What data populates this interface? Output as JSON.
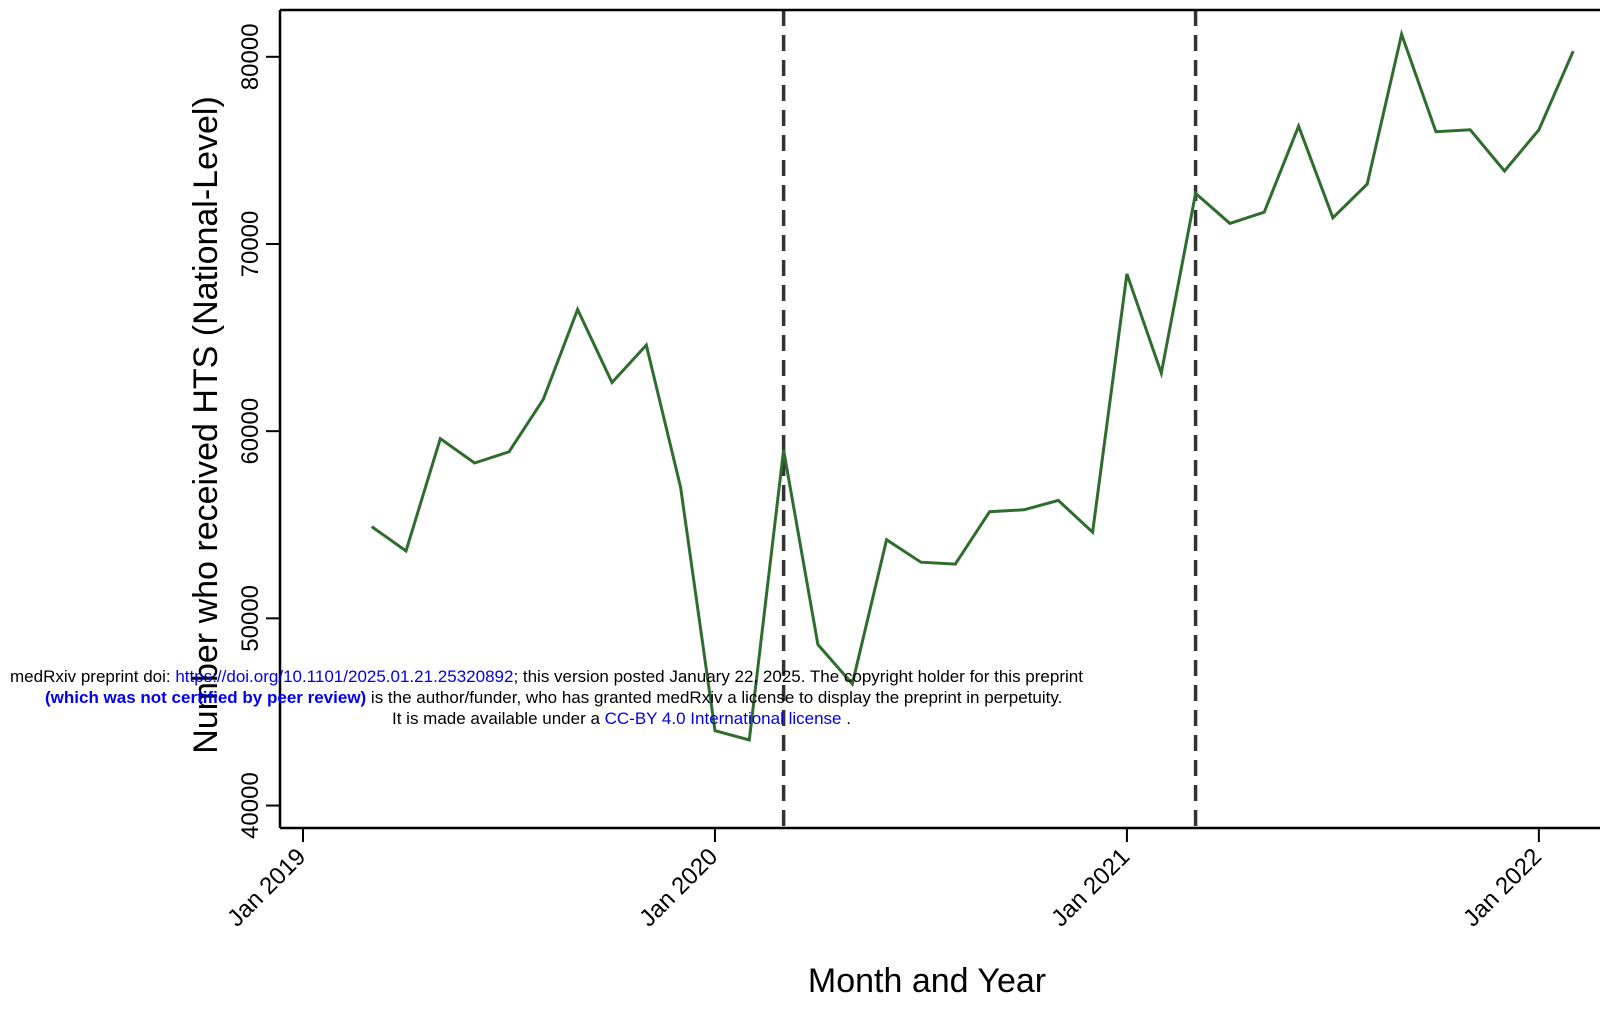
{
  "chart_data": {
    "type": "line",
    "xlabel": "Month and Year",
    "ylabel": "Number who received HTS (National-Level)",
    "xlim": [
      "2019-01",
      "2022-02"
    ],
    "ylim": [
      38800,
      82500
    ],
    "yticks": [
      40000,
      50000,
      60000,
      70000,
      80000
    ],
    "xticks": [
      "Jan 2019",
      "Jan 2020",
      "Jan 2021",
      "Jan 2022"
    ],
    "line_color": "#2f6d2f",
    "vertical_lines": [
      "2020-03",
      "2021-03"
    ],
    "series": [
      {
        "x": [
          "2019-03",
          "2019-04",
          "2019-05",
          "2019-06",
          "2019-07",
          "2019-08",
          "2019-09",
          "2019-10",
          "2019-11",
          "2019-12",
          "2020-01",
          "2020-02",
          "2020-03",
          "2020-04",
          "2020-05",
          "2020-06",
          "2020-07",
          "2020-08",
          "2020-09",
          "2020-10",
          "2020-11",
          "2020-12",
          "2021-01",
          "2021-02",
          "2021-03",
          "2021-04",
          "2021-05",
          "2021-06",
          "2021-07",
          "2021-08",
          "2021-09",
          "2021-10",
          "2021-11",
          "2021-12",
          "2022-01",
          "2022-02"
        ],
        "values": [
          54900,
          53600,
          59600,
          58300,
          58900,
          61700,
          66500,
          62600,
          64600,
          57000,
          44000,
          43500,
          59000,
          48600,
          46500,
          54200,
          53000,
          52900,
          55700,
          55800,
          56300,
          54600,
          68400,
          63100,
          72700,
          71100,
          71700,
          76300,
          71400,
          73200,
          81200,
          76000,
          76100,
          73900,
          76100,
          80300
        ]
      }
    ]
  },
  "banner": {
    "line1_prefix": "medRxiv preprint doi: ",
    "line1_link": "https://doi.org/10.1101/2025.01.21.25320892",
    "line1_suffix": "; this version posted January 22, 2025. The copyright holder for this preprint",
    "line2_bold": "(which was not certified by peer review)",
    "line2_suffix": " is the author/funder, who has granted medRxiv a license to display the preprint in perpetuity.",
    "line3_prefix": "It is made available under a ",
    "line3_link": "CC-BY 4.0 International license",
    "line3_suffix": " ."
  }
}
